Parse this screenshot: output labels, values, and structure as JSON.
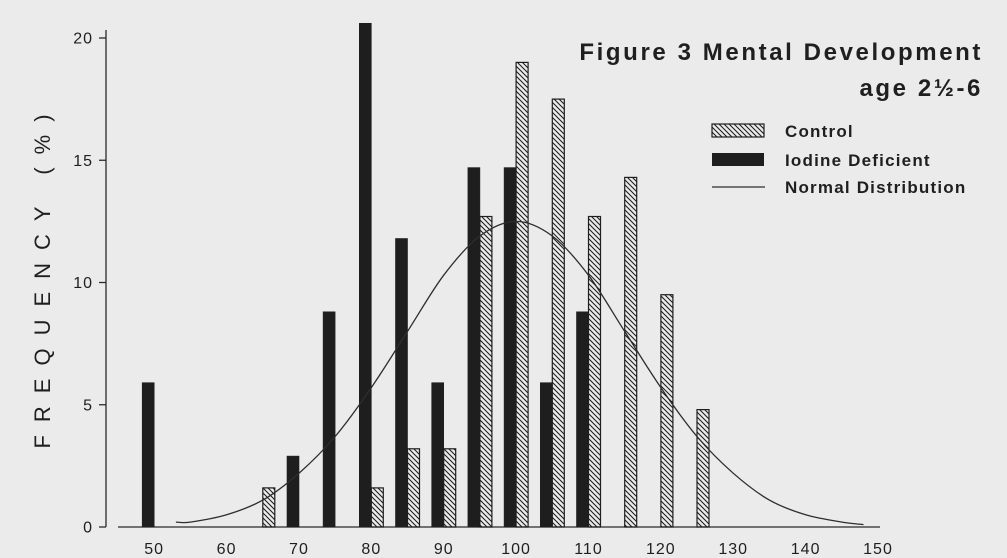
{
  "chart_data": {
    "type": "bar",
    "title": "Figure 3 Mental Development",
    "subtitle": "age 2½-6",
    "ylabel": "FREQUENCY (%)",
    "xlim": [
      45,
      150
    ],
    "ylim": [
      0,
      20
    ],
    "xticks": [
      50,
      60,
      70,
      80,
      90,
      100,
      110,
      120,
      130,
      140,
      150
    ],
    "yticks": [
      0,
      5,
      10,
      15,
      20
    ],
    "grid": false,
    "legend": "top-right",
    "background_color": "#ebebeb",
    "series": [
      {
        "name": "Control",
        "type": "bar",
        "hatched": true,
        "color": "#1e1e1e",
        "x": [
          65,
          80,
          85,
          90,
          95,
          100,
          105,
          110,
          115,
          120,
          125
        ],
        "values": [
          1.6,
          1.6,
          3.2,
          3.2,
          12.7,
          19.0,
          17.5,
          12.7,
          14.3,
          9.5,
          4.8
        ]
      },
      {
        "name": "Iodine Deficient",
        "type": "bar",
        "hatched": false,
        "color": "#1e1e1e",
        "x": [
          50,
          70,
          75,
          80,
          85,
          90,
          95,
          100,
          105,
          110
        ],
        "values": [
          5.9,
          2.9,
          8.8,
          20.6,
          11.8,
          5.9,
          14.7,
          14.7,
          5.9,
          8.8
        ]
      },
      {
        "name": "Normal Distribution",
        "type": "line",
        "color": "#2e2e2e",
        "x": [
          53,
          55,
          60,
          65,
          70,
          75,
          80,
          85,
          90,
          95,
          100,
          105,
          110,
          115,
          120,
          125,
          130,
          135,
          140,
          145,
          148
        ],
        "values": [
          0.2,
          0.2,
          0.5,
          1.1,
          2.2,
          3.7,
          5.7,
          8.0,
          10.3,
          11.9,
          12.5,
          11.9,
          10.3,
          8.0,
          5.7,
          3.7,
          2.2,
          1.1,
          0.5,
          0.2,
          0.1
        ]
      }
    ]
  }
}
